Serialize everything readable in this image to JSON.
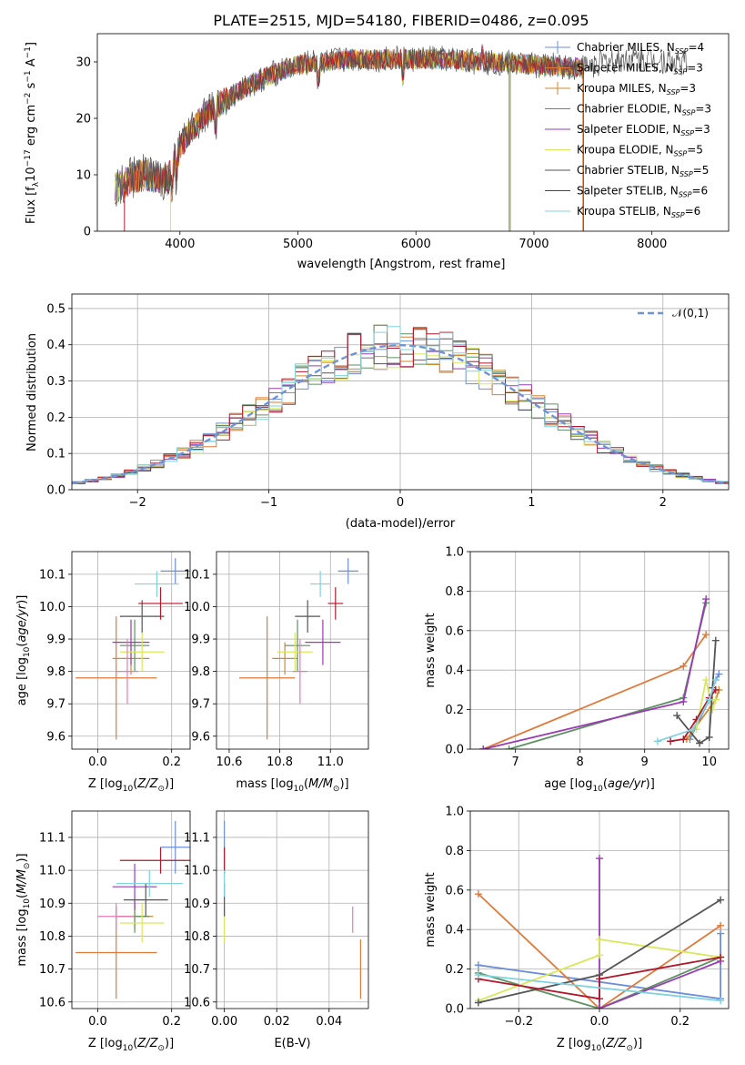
{
  "colors": {
    "chabrier_miles": "#6e8fd8",
    "salpeter_miles": "#e07a3a",
    "kroupa_miles": "#d08a28",
    "chabrier_elodie": "#5c9160",
    "salpeter_elodie": "#9a3bb5",
    "kroupa_elodie": "#d8e85a",
    "chabrier_stelib": "#555555",
    "salpeter_stelib": "#b2182b",
    "kroupa_stelib": "#7fd3e0",
    "normal": "#6f93d8",
    "pink": "#e57ab8"
  },
  "chart_data": [
    {
      "type": "line",
      "title": "PLATE=2515, MJD=54180, FIBERID=0486, z=0.095",
      "xlabel": "wavelength [Angstrom, rest frame]",
      "ylabel": "Flux [f_λ 10^-17 erg cm^-2 s^-1 A^-1]",
      "xlim": [
        3300,
        8650
      ],
      "ylim": [
        0,
        35
      ],
      "x_ticks": [
        "4000",
        "5000",
        "6000",
        "7000",
        "8000"
      ],
      "y_ticks": [
        "0",
        "10",
        "20",
        "30"
      ],
      "legend": "top-right",
      "series": [
        {
          "name": "Chabrier MILES, N_SSP=4"
        },
        {
          "name": "Salpeter MILES, N_SSP=3"
        },
        {
          "name": "Kroupa MILES, N_SSP=3"
        },
        {
          "name": "Chabrier ELODIE, N_SSP=3"
        },
        {
          "name": "Salpeter ELODIE, N_SSP=3"
        },
        {
          "name": "Kroupa ELODIE, N_SSP=5"
        },
        {
          "name": "Chabrier STELIB, N_SSP=5"
        },
        {
          "name": "Salpeter STELIB, N_SSP=6"
        },
        {
          "name": "Kroupa STELIB, N_SSP=6"
        }
      ],
      "spectrum_anchors": {
        "x": [
          3450,
          3600,
          3700,
          3800,
          3900,
          4000,
          4100,
          4200,
          4300,
          4400,
          4600,
          4800,
          5000,
          5200,
          5400,
          5600,
          5800,
          6000,
          6200,
          6400,
          6600,
          6800,
          7000,
          7200,
          7400,
          7600,
          7800,
          8000,
          8200,
          8400
        ],
        "y": [
          7.5,
          9.5,
          10,
          9.5,
          9.0,
          15,
          18,
          20.5,
          22,
          23.5,
          26,
          28,
          29.5,
          30,
          30.5,
          30.5,
          30.5,
          30.5,
          30.5,
          30.3,
          30,
          29.8,
          29.5,
          29.2,
          29,
          30,
          30.5,
          30.5,
          30,
          29.5
        ]
      }
    },
    {
      "type": "bar",
      "xlabel": "(data-model)/error",
      "ylabel": "Normed distribution",
      "xlim": [
        -2.5,
        2.5
      ],
      "ylim": [
        0,
        0.54
      ],
      "x_ticks": [
        "−2",
        "−1",
        "0",
        "1",
        "2"
      ],
      "y_ticks": [
        "0.0",
        "0.1",
        "0.2",
        "0.3",
        "0.4",
        "0.5"
      ],
      "legend": "top-right",
      "reference_curve": {
        "name": "𝒩(0,1)",
        "mu": 0,
        "sigma": 1
      },
      "histogram_bin_width": 0.1
    },
    {
      "type": "scatter",
      "xlabel": "Z [log10(Z/Z⊙)]",
      "ylabel": "age  [log10(age/yr)]",
      "xlim": [
        -0.07,
        0.25
      ],
      "ylim": [
        9.56,
        10.17
      ],
      "x_ticks": [
        "0.0",
        "0.2"
      ],
      "y_ticks": [
        "9.6",
        "9.7",
        "9.8",
        "9.9",
        "10.0",
        "10.1"
      ],
      "points": [
        {
          "model": "Chabrier MILES",
          "x": 0.21,
          "y": 10.11,
          "xerr": 0.04,
          "yerr": 0.04
        },
        {
          "model": "Salpeter MILES",
          "x": 0.05,
          "y": 9.78,
          "xerr": 0.11,
          "yerr": 0.19
        },
        {
          "model": "Kroupa MILES",
          "x": 0.09,
          "y": 9.84,
          "xerr": 0.05,
          "yerr": 0.05
        },
        {
          "model": "Chabrier ELODIE",
          "x": 0.1,
          "y": 9.88,
          "xerr": 0.04,
          "yerr": 0.08
        },
        {
          "model": "Salpeter ELODIE",
          "x": 0.09,
          "y": 9.89,
          "xerr": 0.05,
          "yerr": 0.07
        },
        {
          "model": "Kroupa ELODIE",
          "x": 0.12,
          "y": 9.86,
          "xerr": 0.06,
          "yerr": 0.06
        },
        {
          "model": "Chabrier STELIB",
          "x": 0.12,
          "y": 9.97,
          "xerr": 0.06,
          "yerr": 0.05
        },
        {
          "model": "Salpeter STELIB",
          "x": 0.17,
          "y": 10.01,
          "xerr": 0.06,
          "yerr": 0.05
        },
        {
          "model": "Kroupa STELIB",
          "x": 0.16,
          "y": 10.07,
          "xerr": 0.06,
          "yerr": 0.04
        },
        {
          "model": "pink",
          "x": 0.08,
          "y": 9.8,
          "xerr": 0.03,
          "yerr": 0.1
        }
      ]
    },
    {
      "type": "scatter",
      "xlabel": "mass [log10(M/M⊙)]",
      "ylabel": "",
      "xlim": [
        10.55,
        11.15
      ],
      "ylim": [
        9.56,
        10.17
      ],
      "x_ticks": [
        "10.6",
        "10.8",
        "11.0"
      ],
      "y_ticks": [
        "9.6",
        "9.7",
        "9.8",
        "9.9",
        "10.0",
        "10.1"
      ],
      "points": [
        {
          "model": "Chabrier MILES",
          "x": 11.07,
          "y": 10.11,
          "xerr": 0.04,
          "yerr": 0.04
        },
        {
          "model": "Salpeter MILES",
          "x": 10.75,
          "y": 9.78,
          "xerr": 0.11,
          "yerr": 0.19
        },
        {
          "model": "Kroupa MILES",
          "x": 10.82,
          "y": 9.84,
          "xerr": 0.05,
          "yerr": 0.05
        },
        {
          "model": "Chabrier ELODIE",
          "x": 10.87,
          "y": 9.88,
          "xerr": 0.05,
          "yerr": 0.08
        },
        {
          "model": "Salpeter ELODIE",
          "x": 10.97,
          "y": 9.89,
          "xerr": 0.07,
          "yerr": 0.07
        },
        {
          "model": "Kroupa ELODIE",
          "x": 10.86,
          "y": 9.86,
          "xerr": 0.07,
          "yerr": 0.06
        },
        {
          "model": "Chabrier STELIB",
          "x": 10.91,
          "y": 9.97,
          "xerr": 0.05,
          "yerr": 0.05
        },
        {
          "model": "Salpeter STELIB",
          "x": 11.02,
          "y": 10.01,
          "xerr": 0.03,
          "yerr": 0.05
        },
        {
          "model": "Kroupa STELIB",
          "x": 10.96,
          "y": 10.07,
          "xerr": 0.04,
          "yerr": 0.04
        },
        {
          "model": "pink",
          "x": 10.88,
          "y": 9.8,
          "xerr": 0.03,
          "yerr": 0.1
        }
      ]
    },
    {
      "type": "line",
      "xlabel": "age  [log10(age/yr)]",
      "ylabel": "mass weight",
      "xlim": [
        6.3,
        10.3
      ],
      "ylim": [
        0,
        1.0
      ],
      "x_ticks": [
        "7",
        "8",
        "9",
        "10"
      ],
      "y_ticks": [
        "0.0",
        "0.2",
        "0.4",
        "0.6",
        "0.8",
        "1.0"
      ],
      "series": [
        {
          "model": "Chabrier MILES",
          "x": [
            9.7,
            10.0,
            10.1,
            10.15
          ],
          "y": [
            0.05,
            0.25,
            0.35,
            0.38
          ]
        },
        {
          "model": "Salpeter MILES",
          "x": [
            6.5,
            9.6,
            9.95
          ],
          "y": [
            0.0,
            0.42,
            0.58
          ]
        },
        {
          "model": "Kroupa MILES",
          "x": [
            9.65,
            10.1,
            10.15
          ],
          "y": [
            0.05,
            0.25,
            0.3
          ]
        },
        {
          "model": "Chabrier ELODIE",
          "x": [
            6.9,
            9.6,
            9.95
          ],
          "y": [
            0.0,
            0.26,
            0.74
          ]
        },
        {
          "model": "Salpeter ELODIE",
          "x": [
            6.5,
            9.6,
            9.95
          ],
          "y": [
            0.0,
            0.24,
            0.76
          ]
        },
        {
          "model": "Kroupa ELODIE",
          "x": [
            9.8,
            9.95,
            10.05,
            10.1
          ],
          "y": [
            0.1,
            0.35,
            0.2,
            0.25
          ]
        },
        {
          "model": "Chabrier STELIB",
          "x": [
            9.5,
            9.85,
            10.0,
            10.05,
            10.1
          ],
          "y": [
            0.17,
            0.03,
            0.06,
            0.31,
            0.55
          ]
        },
        {
          "model": "Salpeter STELIB",
          "x": [
            9.4,
            9.6,
            9.8,
            10.0,
            10.1
          ],
          "y": [
            0.04,
            0.05,
            0.15,
            0.26,
            0.3
          ]
        },
        {
          "model": "Kroupa STELIB",
          "x": [
            9.2,
            9.75,
            10.0,
            10.1
          ],
          "y": [
            0.04,
            0.1,
            0.25,
            0.35
          ]
        }
      ]
    },
    {
      "type": "scatter",
      "xlabel": "Z [log10(Z/Z⊙)]",
      "ylabel": "mass [log10(M/M⊙)]",
      "xlim": [
        -0.07,
        0.25
      ],
      "ylim": [
        10.58,
        11.18
      ],
      "x_ticks": [
        "0.0",
        "0.2"
      ],
      "y_ticks": [
        "10.6",
        "10.7",
        "10.8",
        "10.9",
        "11.0",
        "11.1"
      ],
      "points": [
        {
          "model": "Chabrier MILES",
          "x": 0.21,
          "y": 11.07,
          "xerr": 0.04,
          "yerr": 0.08
        },
        {
          "model": "Salpeter MILES",
          "x": 0.05,
          "y": 10.75,
          "xerr": 0.11,
          "yerr": 0.14
        },
        {
          "model": "Kroupa MILES",
          "x": 0.1,
          "y": 10.86,
          "xerr": 0.05,
          "yerr": 0.04
        },
        {
          "model": "Chabrier ELODIE",
          "x": 0.1,
          "y": 10.86,
          "xerr": 0.04,
          "yerr": 0.05
        },
        {
          "model": "Salpeter ELODIE",
          "x": 0.1,
          "y": 10.95,
          "xerr": 0.06,
          "yerr": 0.07
        },
        {
          "model": "Kroupa ELODIE",
          "x": 0.12,
          "y": 10.84,
          "xerr": 0.06,
          "yerr": 0.06
        },
        {
          "model": "Chabrier STELIB",
          "x": 0.13,
          "y": 10.91,
          "xerr": 0.06,
          "yerr": 0.05
        },
        {
          "model": "Salpeter STELIB",
          "x": 0.17,
          "y": 11.03,
          "xerr": 0.11,
          "yerr": 0.04
        },
        {
          "model": "Kroupa STELIB",
          "x": 0.14,
          "y": 10.96,
          "xerr": 0.09,
          "yerr": 0.04
        },
        {
          "model": "pink",
          "x": 0.05,
          "y": 10.86,
          "xerr": 0.05,
          "yerr": 0.04
        }
      ]
    },
    {
      "type": "scatter",
      "xlabel": "E(B-V)",
      "ylabel": "",
      "xlim": [
        -0.003,
        0.055
      ],
      "ylim": [
        10.58,
        11.18
      ],
      "x_ticks": [
        "0.00",
        "0.02",
        "0.04"
      ],
      "y_ticks": [
        "10.6",
        "10.7",
        "10.8",
        "10.9",
        "11.0",
        "11.1"
      ],
      "points": [
        {
          "model": "Chabrier MILES",
          "x": 0.0,
          "y": 11.07,
          "xerr": 0,
          "yerr": 0.08
        },
        {
          "model": "Salpeter MILES",
          "x": 0.052,
          "y": 10.7,
          "xerr": 0,
          "yerr": 0.09
        },
        {
          "model": "Kroupa ELODIE",
          "x": 0.0,
          "y": 10.84,
          "xerr": 0,
          "yerr": 0.06
        },
        {
          "model": "Chabrier STELIB",
          "x": 0.0,
          "y": 10.91,
          "xerr": 0,
          "yerr": 0.05
        },
        {
          "model": "Salpeter STELIB",
          "x": 0.0,
          "y": 11.03,
          "xerr": 0,
          "yerr": 0.04
        },
        {
          "model": "Kroupa STELIB",
          "x": 0.0,
          "y": 10.96,
          "xerr": 0,
          "yerr": 0.04
        },
        {
          "model": "pink",
          "x": 0.049,
          "y": 10.85,
          "xerr": 0,
          "yerr": 0.04
        }
      ]
    },
    {
      "type": "line",
      "xlabel": "Z [log10(Z/Z⊙)]",
      "ylabel": "mass weight",
      "xlim": [
        -0.32,
        0.32
      ],
      "ylim": [
        0,
        1.0
      ],
      "x_ticks": [
        "−0.2",
        "0.0",
        "0.2"
      ],
      "y_ticks": [
        "0.0",
        "0.2",
        "0.4",
        "0.6",
        "0.8",
        "1.0"
      ],
      "series": [
        {
          "model": "Chabrier MILES",
          "x": [
            -0.3,
            0.3,
            0.3
          ],
          "y": [
            0.22,
            0.05,
            0.38
          ]
        },
        {
          "model": "Salpeter MILES",
          "x": [
            -0.3,
            0.0,
            0.3
          ],
          "y": [
            0.58,
            0.0,
            0.42
          ]
        },
        {
          "model": "Chabrier ELODIE",
          "x": [
            -0.3,
            0.0,
            0.3
          ],
          "y": [
            0.18,
            0.0,
            0.26
          ]
        },
        {
          "model": "Salpeter ELODIE",
          "x": [
            0.0,
            0.0,
            0.3
          ],
          "y": [
            0.76,
            0.0,
            0.24
          ]
        },
        {
          "model": "Kroupa ELODIE",
          "x": [
            -0.3,
            0.0,
            0.0,
            0.3
          ],
          "y": [
            0.04,
            0.27,
            0.35,
            0.26
          ]
        },
        {
          "model": "Chabrier STELIB",
          "x": [
            -0.3,
            0.0,
            0.3
          ],
          "y": [
            0.03,
            0.17,
            0.55
          ]
        },
        {
          "model": "Salpeter STELIB",
          "x": [
            -0.3,
            0.0,
            0.0,
            0.3
          ],
          "y": [
            0.15,
            0.05,
            0.15,
            0.26
          ]
        },
        {
          "model": "Kroupa STELIB",
          "x": [
            -0.3,
            0.3
          ],
          "y": [
            0.17,
            0.04
          ]
        }
      ]
    }
  ]
}
